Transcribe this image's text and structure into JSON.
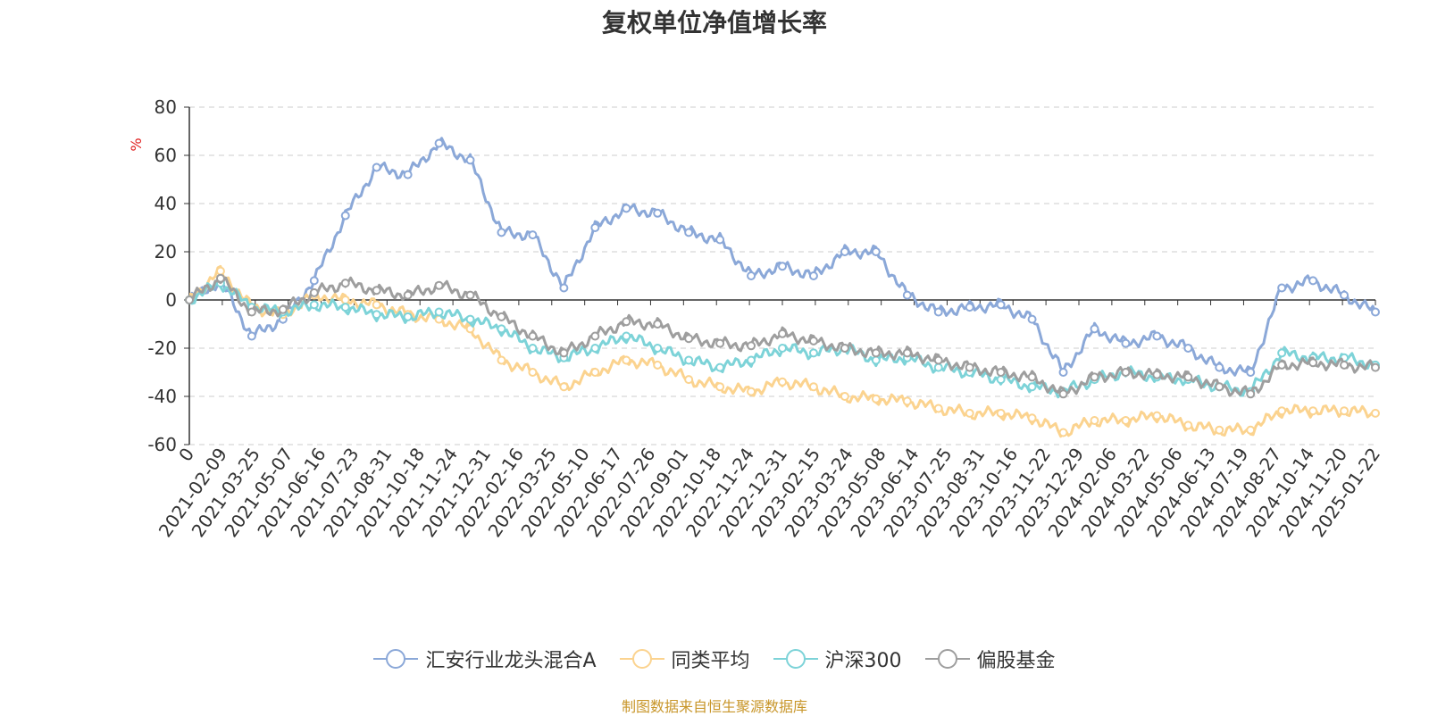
{
  "chart_data": {
    "type": "line",
    "title": "复权单位净值增长率",
    "ylabel": "%",
    "ylim": [
      -60,
      80
    ],
    "yticks": [
      80,
      60,
      40,
      20,
      0,
      -20,
      -40,
      -60
    ],
    "x_tick_labels": [
      "0",
      "2021-02-09",
      "2021-03-25",
      "2021-05-07",
      "2021-06-16",
      "2021-07-23",
      "2021-08-31",
      "2021-10-18",
      "2021-11-24",
      "2021-12-31",
      "2022-02-16",
      "2022-03-25",
      "2022-05-10",
      "2022-06-17",
      "2022-07-26",
      "2022-09-01",
      "2022-10-18",
      "2022-11-24",
      "2022-12-31",
      "2023-02-15",
      "2023-03-24",
      "2023-05-08",
      "2023-06-14",
      "2023-07-25",
      "2023-08-31",
      "2023-10-16",
      "2023-11-22",
      "2023-12-29",
      "2024-02-06",
      "2024-03-22",
      "2024-05-06",
      "2024-06-13",
      "2024-07-19",
      "2024-08-27",
      "2024-10-14",
      "2024-11-20",
      "2025-01-22"
    ],
    "grid": true,
    "legend_position": "bottom",
    "series": [
      {
        "name": "汇安行业龙头混合A",
        "color": "#8ba8d8",
        "values": [
          0,
          8,
          -15,
          -8,
          8,
          35,
          55,
          52,
          65,
          58,
          28,
          27,
          5,
          30,
          38,
          36,
          28,
          25,
          10,
          14,
          10,
          20,
          20,
          2,
          -5,
          -3,
          -2,
          -8,
          -30,
          -12,
          -18,
          -15,
          -20,
          -28,
          -30,
          5,
          8,
          2,
          -5
        ]
      },
      {
        "name": "同类平均",
        "color": "#fbd38f",
        "values": [
          0,
          12,
          -3,
          -6,
          2,
          0,
          -2,
          -6,
          -8,
          -12,
          -25,
          -30,
          -36,
          -30,
          -25,
          -27,
          -33,
          -36,
          -38,
          -34,
          -36,
          -40,
          -41,
          -42,
          -45,
          -47,
          -47,
          -49,
          -55,
          -50,
          -50,
          -48,
          -52,
          -54,
          -54,
          -46,
          -46,
          -46,
          -47
        ]
      },
      {
        "name": "沪深300",
        "color": "#7dd3d8",
        "values": [
          0,
          7,
          -3,
          -5,
          -2,
          -3,
          -6,
          -7,
          -5,
          -8,
          -12,
          -20,
          -24,
          -20,
          -15,
          -20,
          -25,
          -28,
          -25,
          -20,
          -22,
          -20,
          -25,
          -24,
          -28,
          -30,
          -33,
          -36,
          -38,
          -33,
          -30,
          -32,
          -33,
          -36,
          -38,
          -22,
          -24,
          -24,
          -27
        ]
      },
      {
        "name": "偏股基金",
        "color": "#9e9e9e",
        "values": [
          0,
          9,
          -5,
          -4,
          3,
          7,
          4,
          2,
          6,
          2,
          -7,
          -15,
          -22,
          -15,
          -9,
          -10,
          -16,
          -18,
          -19,
          -14,
          -17,
          -20,
          -22,
          -22,
          -25,
          -28,
          -30,
          -32,
          -39,
          -32,
          -30,
          -31,
          -32,
          -36,
          -39,
          -27,
          -26,
          -27,
          -28
        ]
      }
    ]
  },
  "legend": {
    "items": [
      "汇安行业龙头混合A",
      "同类平均",
      "沪深300",
      "偏股基金"
    ]
  },
  "footer": {
    "source_note": "制图数据来自恒生聚源数据库"
  }
}
